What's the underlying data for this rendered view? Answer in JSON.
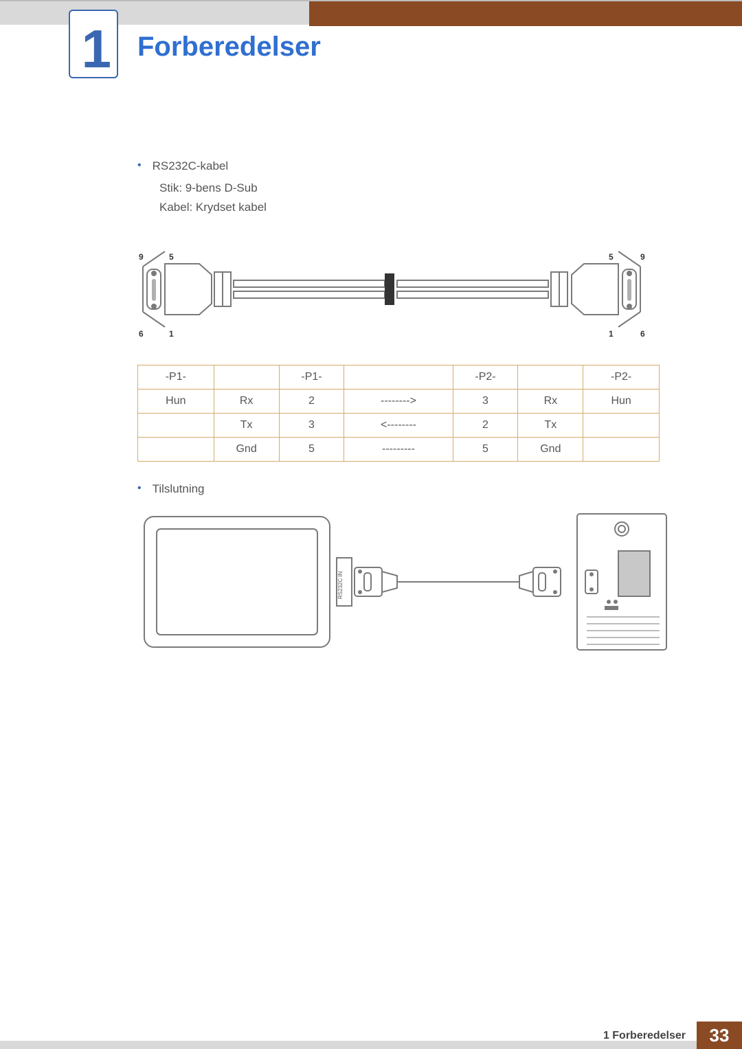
{
  "chapter": {
    "number": "1",
    "title": "Forberedelser",
    "title_color": "#2f6fd0",
    "number_color": "#3a67b1"
  },
  "section": {
    "cable_heading": "RS232C-kabel",
    "connector_line": "Stik: 9-bens D-Sub",
    "cable_line": "Kabel: Krydset kabel",
    "connection_heading": "Tilslutning"
  },
  "cable_diagram": {
    "left_pins": {
      "top_left": "9",
      "top_right": "5",
      "bottom_left": "6",
      "bottom_right": "1"
    },
    "right_pins": {
      "top_left": "5",
      "top_right": "9",
      "bottom_left": "1",
      "bottom_right": "6"
    },
    "label_fontsize": 12,
    "stroke_color": "#7a7a7a",
    "fill_neutral": "#b0b0b0"
  },
  "pin_table": {
    "border_color": "#d7a96b",
    "col_widths_pct": [
      14,
      12,
      12,
      20,
      12,
      12,
      14
    ],
    "rows": [
      [
        "-P1-",
        "",
        "-P1-",
        "",
        "-P2-",
        "",
        "-P2-"
      ],
      [
        "Hun",
        "Rx",
        "2",
        "-------->",
        "3",
        "Rx",
        "Hun"
      ],
      [
        "",
        "Tx",
        "3",
        "<--------",
        "2",
        "Tx",
        ""
      ],
      [
        "",
        "Gnd",
        "5",
        "---------",
        "5",
        "Gnd",
        ""
      ]
    ]
  },
  "connection_diagram": {
    "port_label": "RS232C IN",
    "stroke_color": "#7a7a7a"
  },
  "footer": {
    "label": "1 Forberedelser",
    "page": "33",
    "page_bg": "#8a4a24"
  }
}
